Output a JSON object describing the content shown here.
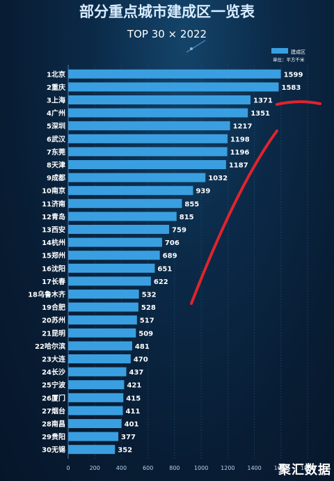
{
  "chart_data": {
    "type": "bar",
    "orientation": "horizontal",
    "title": "部分重点城市建成区一览表",
    "subtitle": "TOP 30 × 2022",
    "legend": {
      "label": "建成区",
      "unit": "单位：平方千米",
      "position": "top-right"
    },
    "categories": [
      "1北京",
      "2重庆",
      "3上海",
      "4广州",
      "5深圳",
      "6武汉",
      "7东莞",
      "8天津",
      "9成都",
      "10南京",
      "11济南",
      "12青岛",
      "13西安",
      "14杭州",
      "15郑州",
      "16沈阳",
      "17长春",
      "18乌鲁木齐",
      "19合肥",
      "20苏州",
      "21昆明",
      "22哈尔滨",
      "23大连",
      "24长沙",
      "25宁波",
      "26厦门",
      "27烟台",
      "28南昌",
      "29贵阳",
      "30无锡"
    ],
    "values": [
      1599,
      1583,
      1371,
      1351,
      1217,
      1198,
      1196,
      1187,
      1032,
      939,
      855,
      815,
      759,
      706,
      689,
      651,
      622,
      532,
      528,
      517,
      509,
      481,
      470,
      437,
      421,
      415,
      411,
      401,
      377,
      352
    ],
    "xlim": [
      0,
      1800
    ],
    "xticks": [
      "0",
      "200",
      "400",
      "600",
      "800",
      "1000",
      "1200",
      "1400",
      "1600",
      "1800"
    ],
    "grid": true,
    "bar_color": "#3a9fe0"
  },
  "watermark": "聚汇数据"
}
